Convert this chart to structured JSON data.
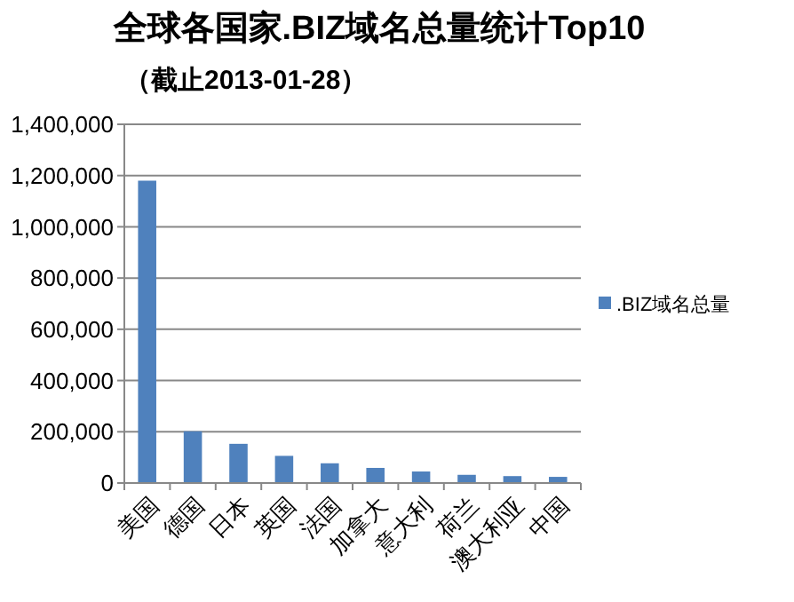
{
  "chart_data": {
    "type": "bar",
    "title": "全球各国家.BIZ域名总量统计Top10",
    "subtitle": "（截止2013-01-28）",
    "categories": [
      "美国",
      "德国",
      "日本",
      "英国",
      "法国",
      "加拿大",
      "意大利",
      "荷兰",
      "澳大利亚",
      "中国"
    ],
    "series": [
      {
        "name": ".BIZ域名总量",
        "color": "#4f81bd",
        "values": [
          1180000,
          202000,
          153000,
          106000,
          77000,
          59000,
          45000,
          32000,
          27000,
          24000
        ]
      }
    ],
    "ylim": [
      0,
      1400000
    ],
    "yticks": [
      {
        "value": 0,
        "label": "0"
      },
      {
        "value": 200000,
        "label": "200,000"
      },
      {
        "value": 400000,
        "label": "400,000"
      },
      {
        "value": 600000,
        "label": "600,000"
      },
      {
        "value": 800000,
        "label": "800,000"
      },
      {
        "value": 1000000,
        "label": "1,000,000"
      },
      {
        "value": 1200000,
        "label": "1,200,000"
      },
      {
        "value": 1400000,
        "label": "1,400,000"
      }
    ],
    "grid": "y",
    "legend": "right"
  }
}
